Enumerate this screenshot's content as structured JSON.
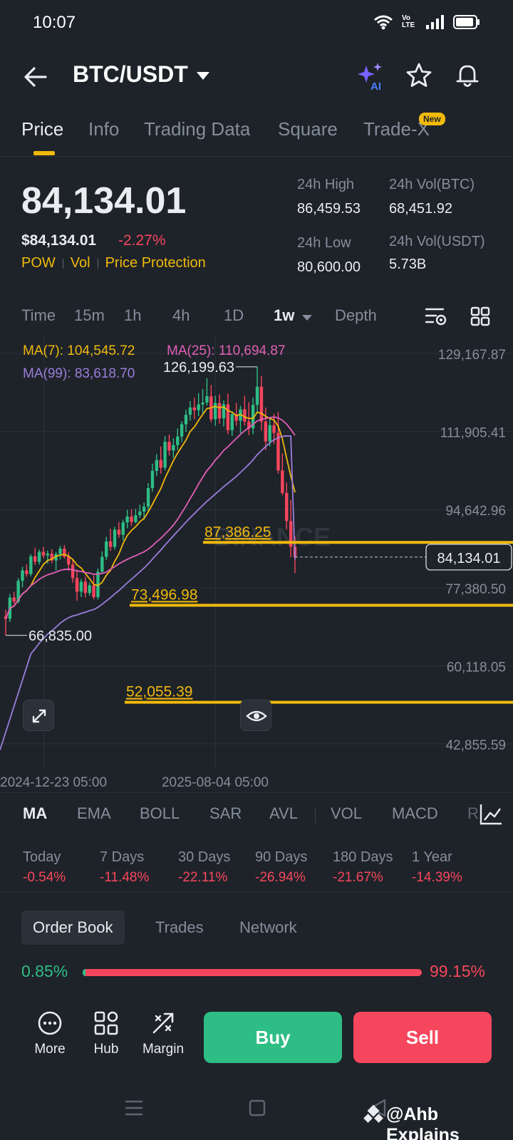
{
  "status_bar": {
    "time": "10:07",
    "network": "Vo LTE"
  },
  "header": {
    "pair": "BTC/USDT",
    "ai_label": "AI"
  },
  "tabs": [
    {
      "label": "Price",
      "active": true
    },
    {
      "label": "Info"
    },
    {
      "label": "Trading Data"
    },
    {
      "label": "Square"
    },
    {
      "label": "Trade-X"
    }
  ],
  "new_badge": "New",
  "price": {
    "last": "84,134.01",
    "usd": "$84,134.01",
    "change": "-2.27%",
    "tags": [
      "POW",
      "Vol",
      "Price Protection"
    ]
  },
  "stats": {
    "high_label": "24h High",
    "high": "86,459.53",
    "low_label": "24h Low",
    "low": "80,600.00",
    "vol_btc_label": "24h Vol(BTC)",
    "vol_btc": "68,451.92",
    "vol_usdt_label": "24h Vol(USDT)",
    "vol_usdt": "5.73B"
  },
  "intervals": [
    "Time",
    "15m",
    "1h",
    "4h",
    "1D",
    "1w",
    "Depth"
  ],
  "active_interval": "1w",
  "chart": {
    "ma7": "MA(7): 104,545.72",
    "ma25": "MA(25): 110,694.87",
    "ma99": "MA(99): 83,618.70",
    "y_ticks": [
      "129,167.87",
      "111,905.41",
      "94,642.96",
      "77,380.50",
      "60,118.05",
      "42,855.59"
    ],
    "x_ticks": [
      "2024-12-23 05:00",
      "2025-08-04 05:00"
    ],
    "high_label": "126,199.63",
    "low_label": "66,835.00",
    "current_price": "84,134.01",
    "levels": [
      "87,386.25",
      "73,496.98",
      "52,055.39"
    ],
    "watermark": "BINANCE",
    "colors": {
      "up": "#2ebd85",
      "down": "#f6465d",
      "ma7": "#f0b90b",
      "ma25": "#e25fb8",
      "ma99": "#9b7ddb",
      "level": "#f0b90b"
    }
  },
  "chart_data": {
    "type": "candlestick",
    "x_ticks": [
      "2024-12-23 05:00",
      "2025-08-04 05:00"
    ],
    "ylim": [
      42855.59,
      129167.87
    ],
    "y_ticks": [
      129167.87,
      111905.41,
      94642.96,
      77380.5,
      60118.05,
      42855.59
    ],
    "marked_high": 126199.63,
    "marked_low": 66835.0,
    "last_price": 84134.01,
    "horizontal_levels": [
      87386.25,
      73496.98,
      52055.39
    ],
    "ma": [
      {
        "name": "MA(7)",
        "value": 104545.72
      },
      {
        "name": "MA(25)",
        "value": 110694.87
      },
      {
        "name": "MA(99)",
        "value": 83618.7
      }
    ],
    "candles": [
      [
        71000,
        72500,
        66835,
        70500
      ],
      [
        70500,
        76000,
        69800,
        75200
      ],
      [
        75200,
        76500,
        73800,
        74300
      ],
      [
        74300,
        79500,
        73900,
        78900
      ],
      [
        78900,
        82000,
        77500,
        81200
      ],
      [
        81200,
        82500,
        79800,
        80400
      ],
      [
        80400,
        84800,
        79900,
        84300
      ],
      [
        84300,
        86200,
        82400,
        83100
      ],
      [
        83100,
        85800,
        82500,
        85300
      ],
      [
        85300,
        86400,
        83900,
        84500
      ],
      [
        84500,
        85600,
        82700,
        84900
      ],
      [
        84900,
        85900,
        82800,
        83400
      ],
      [
        83400,
        85300,
        81200,
        84800
      ],
      [
        84800,
        86600,
        83600,
        86000
      ],
      [
        86000,
        86800,
        83800,
        84200
      ],
      [
        84200,
        85200,
        81100,
        82500
      ],
      [
        82500,
        83800,
        78500,
        79500
      ],
      [
        79500,
        81400,
        74500,
        76500
      ],
      [
        76500,
        79300,
        75300,
        78700
      ],
      [
        78700,
        79800,
        75200,
        76200
      ],
      [
        76200,
        78500,
        75600,
        77900
      ],
      [
        77900,
        80100,
        74800,
        75300
      ],
      [
        75300,
        81600,
        74800,
        80900
      ],
      [
        80900,
        85400,
        80400,
        84200
      ],
      [
        84200,
        88600,
        83500,
        87600
      ],
      [
        87600,
        90400,
        85500,
        86400
      ],
      [
        86400,
        90800,
        85800,
        90200
      ],
      [
        90200,
        91900,
        88400,
        89100
      ],
      [
        89100,
        92400,
        87800,
        91800
      ],
      [
        91800,
        94600,
        90500,
        93100
      ],
      [
        93100,
        94700,
        91000,
        91900
      ],
      [
        91900,
        94800,
        91600,
        93400
      ],
      [
        93400,
        95700,
        92800,
        94200
      ],
      [
        94200,
        96200,
        92400,
        95300
      ],
      [
        95300,
        100500,
        94100,
        99400
      ],
      [
        99400,
        104800,
        98600,
        103200
      ],
      [
        103200,
        106900,
        102100,
        105600
      ],
      [
        105600,
        108600,
        102600,
        103900
      ],
      [
        103900,
        110900,
        103300,
        109600
      ],
      [
        109600,
        111200,
        106600,
        107700
      ],
      [
        107700,
        110400,
        106100,
        108900
      ],
      [
        108900,
        112600,
        107800,
        110800
      ],
      [
        110800,
        114200,
        109600,
        113500
      ],
      [
        113500,
        116700,
        111800,
        115600
      ],
      [
        115600,
        118600,
        114300,
        117200
      ],
      [
        117200,
        119400,
        114600,
        116600
      ],
      [
        116600,
        120400,
        115300,
        117900
      ],
      [
        117900,
        121300,
        116000,
        118300
      ],
      [
        118300,
        123700,
        117600,
        119700
      ],
      [
        119700,
        122200,
        113900,
        114600
      ],
      [
        114600,
        119800,
        113200,
        118200
      ],
      [
        118200,
        120100,
        113600,
        114800
      ],
      [
        114800,
        118800,
        113000,
        117900
      ],
      [
        117900,
        120300,
        111300,
        112200
      ],
      [
        112200,
        116400,
        110900,
        115700
      ],
      [
        115700,
        118200,
        113200,
        114300
      ],
      [
        114300,
        117600,
        111500,
        116800
      ],
      [
        116800,
        119800,
        113200,
        114100
      ],
      [
        114100,
        118400,
        111100,
        112600
      ],
      [
        112600,
        119400,
        111300,
        117800
      ],
      [
        117800,
        126199,
        116100,
        121800
      ],
      [
        121800,
        124200,
        112100,
        114100
      ],
      [
        114100,
        117200,
        107800,
        109700
      ],
      [
        109700,
        114600,
        108600,
        113300
      ],
      [
        113300,
        115800,
        109100,
        111600
      ],
      [
        111600,
        116200,
        102600,
        103300
      ],
      [
        103300,
        107100,
        97800,
        98300
      ],
      [
        98300,
        100600,
        90200,
        92100
      ],
      [
        92100,
        96800,
        84100,
        86400
      ],
      [
        86400,
        88700,
        80600,
        84134
      ]
    ]
  },
  "indicators": [
    "MA",
    "EMA",
    "BOLL",
    "SAR",
    "AVL",
    "VOL",
    "MACD",
    "R"
  ],
  "performance": [
    {
      "label": "Today",
      "value": "-0.54%"
    },
    {
      "label": "7 Days",
      "value": "-11.48%"
    },
    {
      "label": "30 Days",
      "value": "-22.11%"
    },
    {
      "label": "90 Days",
      "value": "-26.94%"
    },
    {
      "label": "180 Days",
      "value": "-21.67%"
    },
    {
      "label": "1 Year",
      "value": "-14.39%"
    }
  ],
  "order_tabs": [
    "Order Book",
    "Trades",
    "Network"
  ],
  "order_ratio": {
    "buy": "0.85%",
    "sell": "99.15%",
    "buy_fraction": 0.0085
  },
  "bottom": {
    "more": "More",
    "hub": "Hub",
    "margin": "Margin",
    "buy": "Buy",
    "sell": "Sell"
  },
  "watermark_text": "@Ahb Explains"
}
